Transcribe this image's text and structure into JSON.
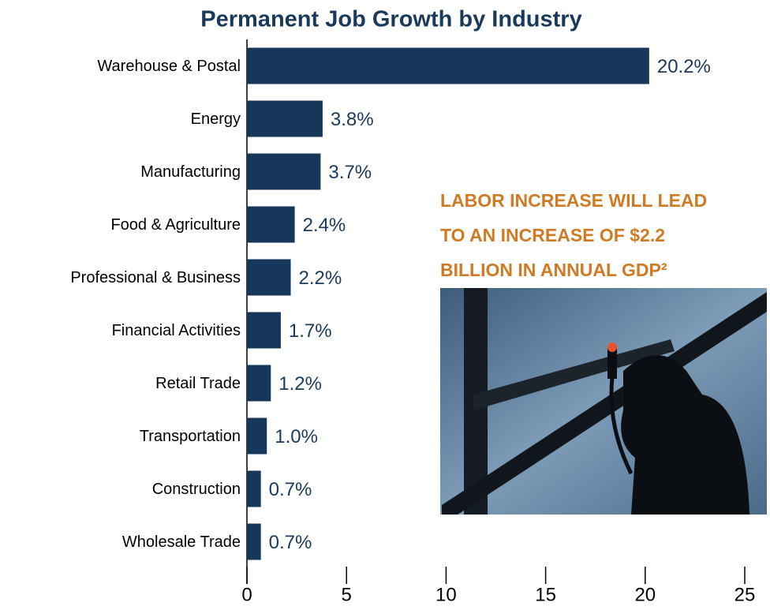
{
  "chart_data": {
    "type": "bar",
    "orientation": "horizontal",
    "title": "Permanent Job Growth by Industry",
    "categories": [
      "Warehouse & Postal",
      "Energy",
      "Manufacturing",
      "Food & Agriculture",
      "Professional & Business",
      "Financial Activities",
      "Retail Trade",
      "Transportation",
      "Construction",
      "Wholesale Trade"
    ],
    "values": [
      20.2,
      3.8,
      3.7,
      2.4,
      2.2,
      1.7,
      1.2,
      1.0,
      0.7,
      0.7
    ],
    "value_labels": [
      "20.2%",
      "3.8%",
      "3.7%",
      "2.4%",
      "2.2%",
      "1.7%",
      "1.2%",
      "1.0%",
      "0.7%",
      "0.7%"
    ],
    "color": "#17375a",
    "xlim": [
      0,
      25
    ],
    "xticks": [
      0,
      5,
      10,
      15,
      20,
      25
    ],
    "annotation": [
      "LABOR INCREASE WILL LEAD",
      "TO AN INCREASE OF  $2.2",
      "BILLION IN ANNUAL GDP²"
    ]
  }
}
